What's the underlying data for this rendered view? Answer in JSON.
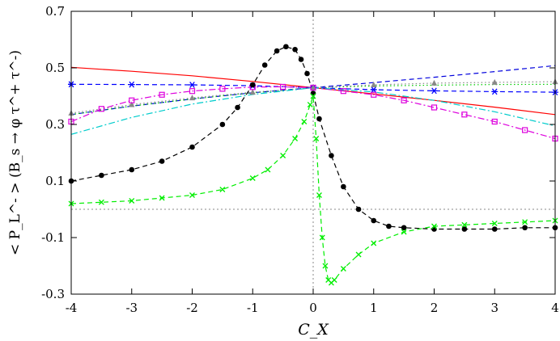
{
  "chart_data": {
    "type": "line",
    "title": "",
    "xlabel": "C_X",
    "ylabel": "< P_L^- > (B_s → φ τ^+ τ^-)",
    "xlim": [
      -4,
      4
    ],
    "ylim": [
      -0.3,
      0.7
    ],
    "xticks": [
      "-4",
      "-3",
      "-2",
      "-1",
      "0",
      "1",
      "2",
      "3",
      "4"
    ],
    "yticks": [
      "-0.3",
      "-0.1",
      "0.1",
      "0.3",
      "0.5",
      "0.7"
    ],
    "grid": false,
    "legend": "none",
    "reference_lines": [
      {
        "axis": "x",
        "value": 0,
        "style": "dotted",
        "color": "#888888"
      },
      {
        "axis": "y",
        "value": 0,
        "style": "dotted",
        "color": "#888888"
      }
    ],
    "series": [
      {
        "color": "#ff0000",
        "dash": "solid",
        "marker": "none",
        "x": [
          -4,
          -3,
          -2,
          -1,
          0,
          1,
          2,
          3,
          4
        ],
        "y": [
          0.502,
          0.488,
          0.472,
          0.452,
          0.43,
          0.408,
          0.385,
          0.361,
          0.335
        ]
      },
      {
        "color": "#0000dd",
        "dash": "dashed",
        "marker": "none",
        "x": [
          -4,
          -3,
          -2,
          -1,
          0,
          1,
          2,
          3,
          4
        ],
        "y": [
          0.335,
          0.365,
          0.39,
          0.412,
          0.43,
          0.448,
          0.467,
          0.487,
          0.508
        ]
      },
      {
        "color": "#00cc00",
        "dash": "dotted",
        "marker": "none",
        "x": [
          -4,
          -3,
          -2,
          -1,
          0,
          1,
          2,
          3,
          4
        ],
        "y": [
          0.335,
          0.365,
          0.39,
          0.412,
          0.43,
          0.436,
          0.439,
          0.441,
          0.442
        ]
      },
      {
        "color": "#0000ff",
        "dash": "dashed",
        "marker": "asterisk",
        "x": [
          -4,
          -3,
          -2,
          -1,
          0,
          1,
          2,
          3,
          4
        ],
        "y": [
          0.442,
          0.441,
          0.44,
          0.437,
          0.43,
          0.423,
          0.419,
          0.416,
          0.414
        ]
      },
      {
        "color": "#888888",
        "dash": "dotted",
        "marker": "triangle",
        "x": [
          -4,
          -3,
          -2,
          -1,
          0,
          1,
          2,
          3,
          4
        ],
        "y": [
          0.34,
          0.37,
          0.394,
          0.414,
          0.43,
          0.44,
          0.446,
          0.449,
          0.451
        ]
      },
      {
        "color": "#dd00dd",
        "dash": "dashdot",
        "marker": "square",
        "x": [
          -4,
          -3.5,
          -3,
          -2.5,
          -2,
          -1.5,
          -1,
          -0.5,
          0,
          0.5,
          1,
          1.5,
          2,
          2.5,
          3,
          3.5,
          4
        ],
        "y": [
          0.31,
          0.355,
          0.385,
          0.405,
          0.418,
          0.426,
          0.432,
          0.433,
          0.43,
          0.418,
          0.405,
          0.385,
          0.36,
          0.335,
          0.31,
          0.28,
          0.25
        ]
      },
      {
        "color": "#00cccc",
        "dash": "dashdot",
        "marker": "none",
        "x": [
          -4,
          -3,
          -2,
          -1,
          0,
          1,
          2,
          3,
          4
        ],
        "y": [
          0.265,
          0.325,
          0.372,
          0.406,
          0.43,
          0.415,
          0.385,
          0.345,
          0.295
        ]
      },
      {
        "color": "#000000",
        "dash": "dashed",
        "marker": "circle",
        "x": [
          -4,
          -3.5,
          -3,
          -2.5,
          -2,
          -1.5,
          -1.25,
          -1,
          -0.8,
          -0.6,
          -0.45,
          -0.3,
          -0.2,
          -0.1,
          0,
          0.1,
          0.3,
          0.5,
          0.75,
          1,
          1.25,
          1.5,
          2,
          2.5,
          3,
          3.5,
          4
        ],
        "y": [
          0.1,
          0.12,
          0.14,
          0.17,
          0.22,
          0.3,
          0.36,
          0.44,
          0.51,
          0.56,
          0.575,
          0.565,
          0.53,
          0.48,
          0.41,
          0.32,
          0.19,
          0.08,
          0.0,
          -0.04,
          -0.06,
          -0.065,
          -0.07,
          -0.07,
          -0.07,
          -0.065,
          -0.065
        ]
      },
      {
        "color": "#00ee00",
        "dash": "dashed",
        "marker": "cross",
        "x": [
          -4,
          -3.5,
          -3,
          -2.5,
          -2,
          -1.5,
          -1,
          -0.75,
          -0.5,
          -0.3,
          -0.15,
          -0.05,
          0,
          0.05,
          0.1,
          0.15,
          0.2,
          0.25,
          0.3,
          0.35,
          0.5,
          0.75,
          1,
          1.5,
          2,
          2.5,
          3,
          3.5,
          4
        ],
        "y": [
          0.02,
          0.025,
          0.03,
          0.04,
          0.05,
          0.07,
          0.11,
          0.14,
          0.19,
          0.25,
          0.31,
          0.37,
          0.4,
          0.25,
          0.05,
          -0.1,
          -0.2,
          -0.25,
          -0.26,
          -0.25,
          -0.21,
          -0.16,
          -0.12,
          -0.08,
          -0.06,
          -0.055,
          -0.05,
          -0.045,
          -0.04
        ]
      }
    ]
  }
}
